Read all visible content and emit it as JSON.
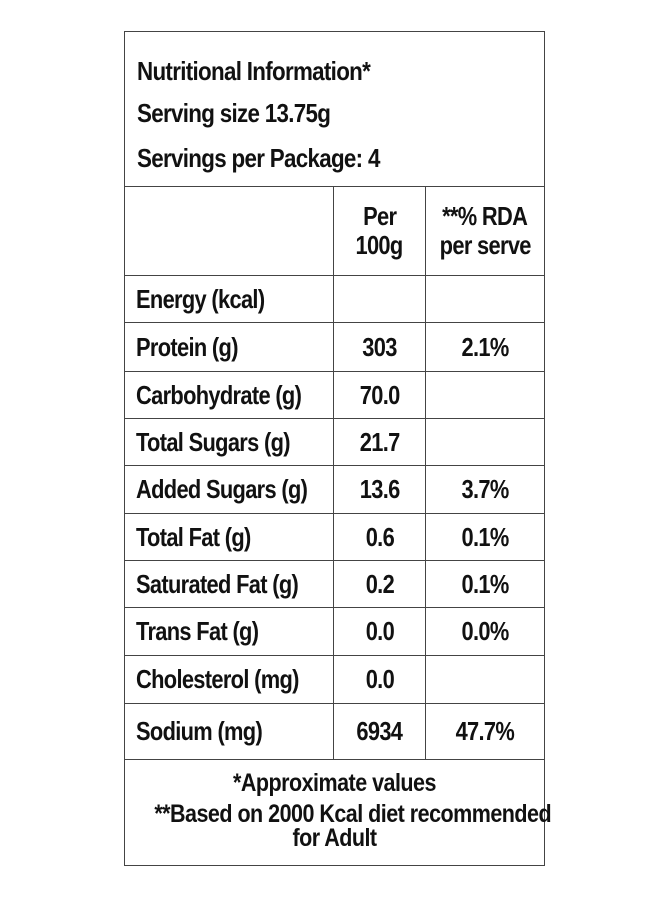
{
  "header": {
    "title": "Nutritional Information*",
    "serving_size": "Serving size 13.75g",
    "servings_per_package": "Servings per Package: 4"
  },
  "columns": {
    "per_100g_line1": "Per",
    "per_100g_line2": "100g",
    "rda_line1": "**% RDA",
    "rda_line2": "per serve"
  },
  "rows": [
    {
      "nutrient": "Energy (kcal)",
      "per_100g": "",
      "rda": ""
    },
    {
      "nutrient": "Protein (g)",
      "per_100g": "303",
      "rda": "2.1%"
    },
    {
      "nutrient": "Carbohydrate (g)",
      "per_100g": "70.0",
      "rda": ""
    },
    {
      "nutrient": "Total Sugars (g)",
      "per_100g": "21.7",
      "rda": ""
    },
    {
      "nutrient": "Added Sugars (g)",
      "per_100g": "13.6",
      "rda": "3.7%"
    },
    {
      "nutrient": "Total Fat (g)",
      "per_100g": "0.6",
      "rda": "0.1%"
    },
    {
      "nutrient": "Saturated Fat (g)",
      "per_100g": "0.2",
      "rda": "0.1%"
    },
    {
      "nutrient": "Trans Fat (g)",
      "per_100g": "0.0",
      "rda": "0.0%"
    },
    {
      "nutrient": "Cholesterol (mg)",
      "per_100g": "0.0",
      "rda": ""
    },
    {
      "nutrient": "Sodium (mg)",
      "per_100g": "6934",
      "rda": "47.7%"
    }
  ],
  "footer": {
    "note1": "*Approximate values",
    "note2": "**Based on 2000 Kcal diet recommended",
    "note3": "for Adult"
  }
}
